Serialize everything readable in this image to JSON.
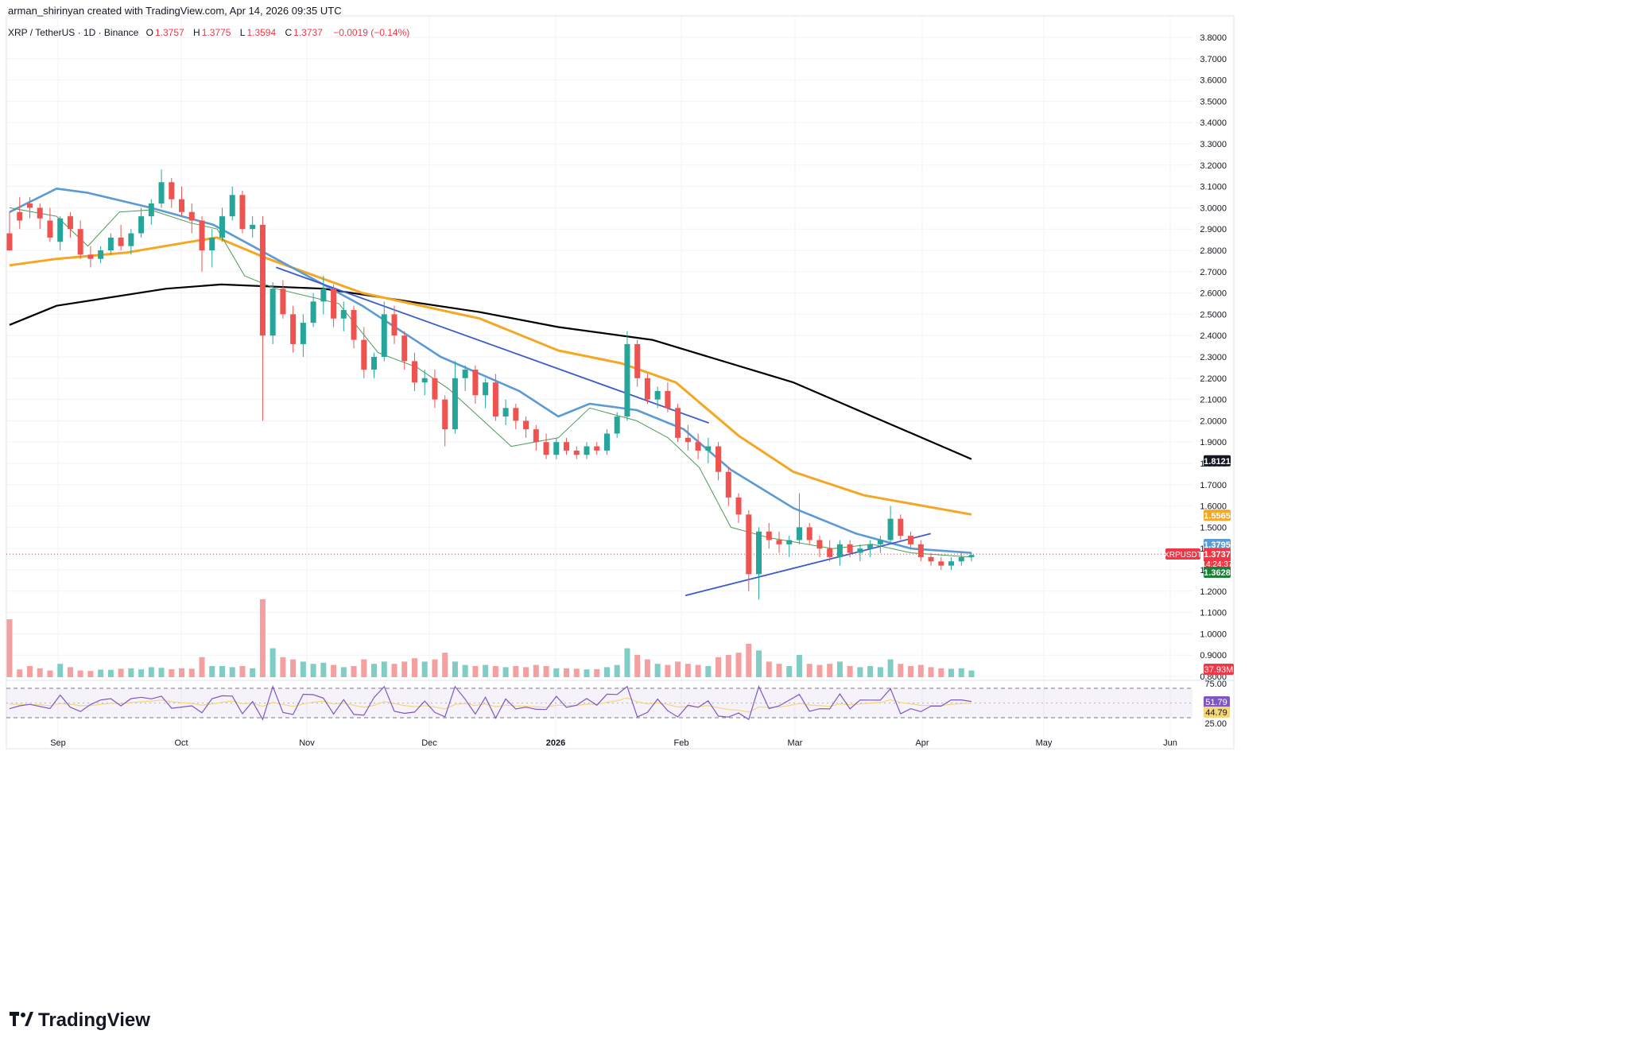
{
  "header": {
    "credit": "arman_shirinyan created with TradingView.com, Apr 14, 2026 09:35 UTC"
  },
  "legend": {
    "symbol": "XRP / TetherUS · 1D · Binance",
    "open_label": "O",
    "open": "1.3757",
    "high_label": "H",
    "high": "1.3775",
    "low_label": "L",
    "low": "1.3594",
    "close_label": "C",
    "close": "1.3737",
    "change": "−0.0019 (−0.14%)"
  },
  "footer": {
    "brand": "TradingView"
  },
  "colors": {
    "up": "#26a69a",
    "down": "#ef5350",
    "vol_up": "#7fcdc4",
    "vol_down": "#f4a0a0",
    "ema_fast": "#4c9a52",
    "ema_mid": "#5b9bd5",
    "ema_slow": "#f5a623",
    "sma_long": "#000000",
    "trend": "#3d5bc9",
    "rsi": "#7e57c2",
    "rsi_ma": "#f5d776"
  },
  "chart_data": {
    "type": "candlestick",
    "symbol": "XRPUSDT",
    "timeframe": "1D",
    "y_ticks": [
      "3.8000",
      "3.7000",
      "3.6000",
      "3.5000",
      "3.4000",
      "3.3000",
      "3.2000",
      "3.1000",
      "3.0000",
      "2.9000",
      "2.8000",
      "2.7000",
      "2.6000",
      "2.5000",
      "2.4000",
      "2.3000",
      "2.2000",
      "2.1000",
      "2.0000",
      "1.9000",
      "1.8000",
      "1.7000",
      "1.6000",
      "1.5000",
      "1.4000",
      "1.3000",
      "1.2000",
      "1.1000",
      "1.0000",
      "0.9000",
      "0.8000"
    ],
    "ylim": [
      0.8,
      3.85
    ],
    "x_ticks": [
      "Sep",
      "Oct",
      "Nov",
      "Dec",
      "2026",
      "Feb",
      "Mar",
      "Apr",
      "May",
      "Jun"
    ],
    "price_tags": [
      {
        "name": "sma_long",
        "label": "1.8121",
        "value": 1.8121,
        "color": "#131722"
      },
      {
        "name": "ema_slow",
        "label": "1.5565",
        "value": 1.5565,
        "color": "#f5a623"
      },
      {
        "name": "ema_mid",
        "label": "1.3795",
        "value": 1.3795,
        "color": "#5b9bd5"
      },
      {
        "name": "last",
        "label": "1.3737",
        "value": 1.3737,
        "color": "#f23645",
        "symbol": "XRPUSDT",
        "countdown": "14:24:37"
      },
      {
        "name": "ema_fast",
        "label": "1.3628",
        "value": 1.3628,
        "color": "#1a7f37"
      }
    ],
    "volume_tag": "37.93M",
    "rsi": {
      "upper": "75.00",
      "lower": "25.00",
      "value": "51.79",
      "ma": "44.79"
    },
    "series": [
      {
        "name": "sma_long",
        "points": [
          [
            0,
            2.45
          ],
          [
            60,
            2.54
          ],
          [
            200,
            2.62
          ],
          [
            270,
            2.64
          ],
          [
            400,
            2.62
          ],
          [
            600,
            2.51
          ],
          [
            700,
            2.44
          ],
          [
            820,
            2.38
          ],
          [
            1000,
            2.18
          ],
          [
            1227,
            1.82
          ]
        ]
      },
      {
        "name": "ema_slow",
        "points": [
          [
            0,
            2.73
          ],
          [
            60,
            2.76
          ],
          [
            150,
            2.79
          ],
          [
            230,
            2.84
          ],
          [
            265,
            2.86
          ],
          [
            330,
            2.76
          ],
          [
            450,
            2.6
          ],
          [
            600,
            2.48
          ],
          [
            700,
            2.33
          ],
          [
            780,
            2.27
          ],
          [
            850,
            2.18
          ],
          [
            930,
            1.93
          ],
          [
            1000,
            1.76
          ],
          [
            1090,
            1.65
          ],
          [
            1227,
            1.56
          ]
        ]
      },
      {
        "name": "ema_mid",
        "points": [
          [
            0,
            2.98
          ],
          [
            60,
            3.09
          ],
          [
            100,
            3.07
          ],
          [
            180,
            3.0
          ],
          [
            260,
            2.92
          ],
          [
            340,
            2.76
          ],
          [
            450,
            2.54
          ],
          [
            550,
            2.3
          ],
          [
            650,
            2.14
          ],
          [
            700,
            2.02
          ],
          [
            740,
            2.08
          ],
          [
            800,
            2.05
          ],
          [
            860,
            1.96
          ],
          [
            920,
            1.77
          ],
          [
            1000,
            1.59
          ],
          [
            1080,
            1.47
          ],
          [
            1150,
            1.4
          ],
          [
            1227,
            1.38
          ]
        ]
      },
      {
        "name": "ema_fast",
        "points": [
          [
            0,
            3.0
          ],
          [
            60,
            2.96
          ],
          [
            100,
            2.82
          ],
          [
            140,
            2.98
          ],
          [
            180,
            2.99
          ],
          [
            230,
            2.93
          ],
          [
            265,
            2.9
          ],
          [
            300,
            2.68
          ],
          [
            340,
            2.62
          ],
          [
            420,
            2.55
          ],
          [
            470,
            2.32
          ],
          [
            520,
            2.25
          ],
          [
            560,
            2.15
          ],
          [
            640,
            1.88
          ],
          [
            700,
            1.92
          ],
          [
            740,
            2.06
          ],
          [
            800,
            2.0
          ],
          [
            840,
            1.92
          ],
          [
            880,
            1.78
          ],
          [
            920,
            1.5
          ],
          [
            970,
            1.45
          ],
          [
            1050,
            1.4
          ],
          [
            1100,
            1.42
          ],
          [
            1150,
            1.38
          ],
          [
            1227,
            1.36
          ]
        ]
      },
      {
        "name": "trend_upper",
        "points": [
          [
            340,
            2.72
          ],
          [
            892,
            1.99
          ]
        ]
      },
      {
        "name": "trend_lower",
        "points": [
          [
            862,
            1.18
          ],
          [
            1175,
            1.47
          ]
        ]
      }
    ],
    "candles": [
      [
        2.88,
        2.98,
        2.82,
        2.8,
        2.6,
        0
      ],
      [
        2.98,
        3.05,
        2.9,
        2.94,
        0.35,
        0
      ],
      [
        3.02,
        3.05,
        2.95,
        3.0,
        0.5,
        0
      ],
      [
        3.0,
        3.02,
        2.9,
        2.95,
        0.4,
        0
      ],
      [
        2.94,
        3.0,
        2.84,
        2.86,
        0.3,
        0
      ],
      [
        2.84,
        2.96,
        2.8,
        2.95,
        0.6,
        0
      ],
      [
        2.96,
        2.98,
        2.86,
        2.9,
        0.45,
        0
      ],
      [
        2.9,
        2.94,
        2.76,
        2.78,
        0.3,
        0
      ],
      [
        2.78,
        2.82,
        2.72,
        2.76,
        0.28,
        0
      ],
      [
        2.76,
        2.82,
        2.74,
        2.8,
        0.34,
        0
      ],
      [
        2.8,
        2.88,
        2.78,
        2.86,
        0.33,
        0
      ],
      [
        2.86,
        2.92,
        2.8,
        2.82,
        0.38,
        0
      ],
      [
        2.82,
        2.9,
        2.78,
        2.88,
        0.4,
        0
      ],
      [
        2.88,
        3.0,
        2.86,
        2.96,
        0.35,
        0
      ],
      [
        2.96,
        3.04,
        2.92,
        3.02,
        0.45,
        0
      ],
      [
        3.02,
        3.18,
        3.0,
        3.12,
        0.42,
        0
      ],
      [
        3.12,
        3.14,
        3.0,
        3.04,
        0.36,
        0
      ],
      [
        3.04,
        3.1,
        2.96,
        2.98,
        0.4,
        0
      ],
      [
        2.98,
        3.02,
        2.88,
        2.94,
        0.38,
        0
      ],
      [
        2.94,
        2.96,
        2.7,
        2.8,
        0.9,
        0
      ],
      [
        2.8,
        2.9,
        2.72,
        2.86,
        0.5,
        0
      ],
      [
        2.86,
        3.0,
        2.84,
        2.96,
        0.5,
        0
      ],
      [
        2.96,
        3.1,
        2.94,
        3.06,
        0.45,
        0
      ],
      [
        3.06,
        3.08,
        2.88,
        2.9,
        0.5,
        0
      ],
      [
        2.9,
        2.96,
        2.86,
        2.92,
        0.4,
        0
      ],
      [
        2.92,
        2.96,
        2.0,
        2.4,
        3.5,
        0
      ],
      [
        2.4,
        2.65,
        2.36,
        2.62,
        1.3,
        0
      ],
      [
        2.62,
        2.66,
        2.48,
        2.5,
        0.9,
        0
      ],
      [
        2.5,
        2.54,
        2.32,
        2.36,
        0.8,
        0
      ],
      [
        2.36,
        2.5,
        2.3,
        2.46,
        0.7,
        0
      ],
      [
        2.46,
        2.6,
        2.44,
        2.56,
        0.6,
        0
      ],
      [
        2.56,
        2.68,
        2.5,
        2.62,
        0.65,
        0
      ],
      [
        2.62,
        2.64,
        2.44,
        2.48,
        0.55,
        0
      ],
      [
        2.48,
        2.56,
        2.42,
        2.52,
        0.45,
        0
      ],
      [
        2.52,
        2.54,
        2.34,
        2.38,
        0.5,
        0
      ],
      [
        2.38,
        2.44,
        2.2,
        2.24,
        0.8,
        0
      ],
      [
        2.24,
        2.32,
        2.2,
        2.3,
        0.6,
        0
      ],
      [
        2.3,
        2.56,
        2.28,
        2.5,
        0.7,
        0
      ],
      [
        2.5,
        2.54,
        2.36,
        2.4,
        0.6,
        0
      ],
      [
        2.4,
        2.42,
        2.24,
        2.28,
        0.7,
        0
      ],
      [
        2.28,
        2.32,
        2.14,
        2.18,
        0.85,
        0
      ],
      [
        2.18,
        2.24,
        2.12,
        2.2,
        0.7,
        0
      ],
      [
        2.2,
        2.24,
        2.06,
        2.1,
        0.8,
        0
      ],
      [
        2.1,
        2.12,
        1.88,
        1.96,
        1.1,
        0
      ],
      [
        1.96,
        2.28,
        1.94,
        2.2,
        0.7,
        0
      ],
      [
        2.2,
        2.26,
        2.14,
        2.24,
        0.55,
        0
      ],
      [
        2.24,
        2.26,
        2.08,
        2.12,
        0.5,
        0
      ],
      [
        2.12,
        2.2,
        2.06,
        2.18,
        0.55,
        0
      ],
      [
        2.18,
        2.22,
        2.0,
        2.02,
        0.5,
        0
      ],
      [
        2.02,
        2.1,
        1.98,
        2.06,
        0.45,
        0
      ],
      [
        2.06,
        2.08,
        1.96,
        2.0,
        0.5,
        0
      ],
      [
        2.0,
        2.02,
        1.92,
        1.96,
        0.45,
        0
      ],
      [
        1.96,
        1.98,
        1.86,
        1.9,
        0.55,
        0
      ],
      [
        1.9,
        1.94,
        1.82,
        1.84,
        0.5,
        0
      ],
      [
        1.84,
        1.92,
        1.82,
        1.9,
        0.4,
        0
      ],
      [
        1.9,
        1.92,
        1.84,
        1.86,
        0.4,
        0
      ],
      [
        1.86,
        1.88,
        1.82,
        1.84,
        0.38,
        0
      ],
      [
        1.84,
        1.9,
        1.82,
        1.88,
        0.35,
        0
      ],
      [
        1.88,
        1.9,
        1.84,
        1.86,
        0.36,
        0
      ],
      [
        1.86,
        1.96,
        1.84,
        1.94,
        0.45,
        0
      ],
      [
        1.94,
        2.04,
        1.92,
        2.02,
        0.55,
        0
      ],
      [
        2.02,
        2.42,
        2.0,
        2.36,
        1.3,
        0
      ],
      [
        2.36,
        2.38,
        2.16,
        2.2,
        1.0,
        0
      ],
      [
        2.2,
        2.22,
        2.08,
        2.1,
        0.8,
        0
      ],
      [
        2.1,
        2.16,
        2.06,
        2.14,
        0.6,
        0
      ],
      [
        2.14,
        2.18,
        2.04,
        2.06,
        0.55,
        0
      ],
      [
        2.06,
        2.08,
        1.9,
        1.92,
        0.7,
        0
      ],
      [
        1.92,
        1.98,
        1.86,
        1.9,
        0.6,
        0
      ],
      [
        1.9,
        1.94,
        1.82,
        1.86,
        0.55,
        0
      ],
      [
        1.86,
        1.92,
        1.8,
        1.88,
        0.5,
        0
      ],
      [
        1.88,
        1.9,
        1.72,
        1.76,
        0.9,
        0
      ],
      [
        1.76,
        1.78,
        1.6,
        1.64,
        1.0,
        0
      ],
      [
        1.64,
        1.66,
        1.52,
        1.56,
        1.1,
        0
      ],
      [
        1.56,
        1.58,
        1.2,
        1.28,
        1.5,
        0
      ],
      [
        1.28,
        1.5,
        1.16,
        1.48,
        1.2,
        0
      ],
      [
        1.48,
        1.52,
        1.4,
        1.44,
        0.7,
        0
      ],
      [
        1.44,
        1.48,
        1.38,
        1.42,
        0.6,
        0
      ],
      [
        1.42,
        1.46,
        1.36,
        1.44,
        0.5,
        0
      ],
      [
        1.44,
        1.66,
        1.42,
        1.5,
        1.0,
        0
      ],
      [
        1.5,
        1.52,
        1.42,
        1.44,
        0.6,
        0
      ],
      [
        1.44,
        1.46,
        1.36,
        1.4,
        0.55,
        0
      ],
      [
        1.4,
        1.44,
        1.34,
        1.36,
        0.6,
        0
      ],
      [
        1.36,
        1.44,
        1.32,
        1.42,
        0.7,
        0
      ],
      [
        1.42,
        1.44,
        1.36,
        1.38,
        0.5,
        0
      ],
      [
        1.38,
        1.42,
        1.34,
        1.4,
        0.45,
        0
      ],
      [
        1.4,
        1.44,
        1.36,
        1.42,
        0.5,
        0
      ],
      [
        1.42,
        1.46,
        1.38,
        1.44,
        0.45,
        0
      ],
      [
        1.44,
        1.6,
        1.42,
        1.54,
        0.8,
        0
      ],
      [
        1.54,
        1.56,
        1.44,
        1.46,
        0.6,
        0
      ],
      [
        1.46,
        1.48,
        1.4,
        1.42,
        0.5,
        0
      ],
      [
        1.42,
        1.44,
        1.34,
        1.36,
        0.55,
        0
      ],
      [
        1.36,
        1.38,
        1.32,
        1.34,
        0.45,
        0
      ],
      [
        1.34,
        1.36,
        1.3,
        1.32,
        0.4,
        0
      ],
      [
        1.32,
        1.36,
        1.3,
        1.34,
        0.38,
        0
      ],
      [
        1.34,
        1.38,
        1.32,
        1.36,
        0.4,
        0
      ],
      [
        1.36,
        1.38,
        1.34,
        1.37,
        0.3,
        0
      ]
    ]
  }
}
